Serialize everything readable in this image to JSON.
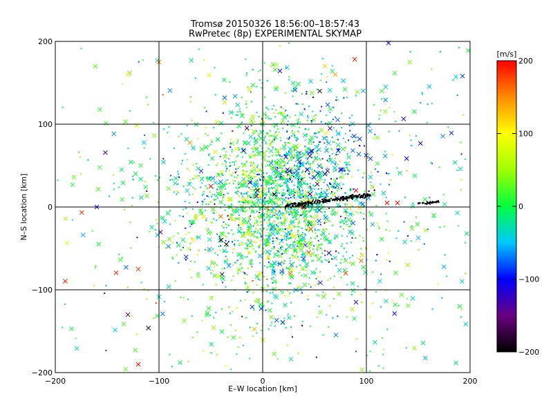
{
  "chart_data": {
    "type": "scatter",
    "title": "Tromsø 20150326 18:56:00–18:57:43",
    "subtitle": "RwPretec (8p) EXPERIMENTAL SKYMAP",
    "xlabel": "E–W location [km]",
    "ylabel": "N–S location [km]",
    "xlim": [
      -200,
      200
    ],
    "ylim": [
      -200,
      200
    ],
    "x_ticks": [
      -200,
      -100,
      0,
      100,
      200
    ],
    "y_ticks": [
      -200,
      -100,
      0,
      100,
      200
    ],
    "grid": true,
    "colorbar": {
      "unit": "[m/s]",
      "range": [
        -200,
        200
      ],
      "ticks": [
        200,
        100,
        0,
        -100,
        -200
      ],
      "colormap": "rainbow: black(-200) → purple → blue(-100) → cyan → green(0) → yellow(100) → orange → red(200)"
    },
    "markers": [
      "x (large)",
      "dot (small)"
    ],
    "point_density_note": "dense cluster around (0..40, -60..80); black streak along y≈0–15 from x≈20 to x≈105 and x≈150–170",
    "sample_points": [
      {
        "x": -130,
        "y": 160,
        "v": 110
      },
      {
        "x": -100,
        "y": 175,
        "v": 160
      },
      {
        "x": 60,
        "y": 170,
        "v": 120
      },
      {
        "x": 70,
        "y": 160,
        "v": 140
      },
      {
        "x": 115,
        "y": 140,
        "v": 20
      },
      {
        "x": 55,
        "y": 140,
        "v": -180
      },
      {
        "x": 0,
        "y": 100,
        "v": 10
      },
      {
        "x": 65,
        "y": 95,
        "v": -140
      },
      {
        "x": 75,
        "y": 45,
        "v": -120
      },
      {
        "x": 60,
        "y": 40,
        "v": -110
      },
      {
        "x": -50,
        "y": 25,
        "v": 200
      },
      {
        "x": -5,
        "y": 20,
        "v": -190
      },
      {
        "x": 90,
        "y": 20,
        "v": 200
      },
      {
        "x": 120,
        "y": 5,
        "v": 200
      },
      {
        "x": 130,
        "y": 5,
        "v": 200
      },
      {
        "x": -160,
        "y": 0,
        "v": -100
      },
      {
        "x": 40,
        "y": 0,
        "v": -200
      },
      {
        "x": 160,
        "y": 5,
        "v": -200
      },
      {
        "x": -40,
        "y": -40,
        "v": -200
      },
      {
        "x": -35,
        "y": -45,
        "v": -200
      },
      {
        "x": -120,
        "y": -75,
        "v": 180
      },
      {
        "x": 95,
        "y": -65,
        "v": 160
      },
      {
        "x": 80,
        "y": -80,
        "v": 180
      },
      {
        "x": -130,
        "y": -130,
        "v": -160
      },
      {
        "x": -120,
        "y": -190,
        "v": 200
      },
      {
        "x": 140,
        "y": -70,
        "v": 50
      },
      {
        "x": 190,
        "y": -120,
        "v": 0
      },
      {
        "x": 90,
        "y": -115,
        "v": -120
      }
    ]
  }
}
